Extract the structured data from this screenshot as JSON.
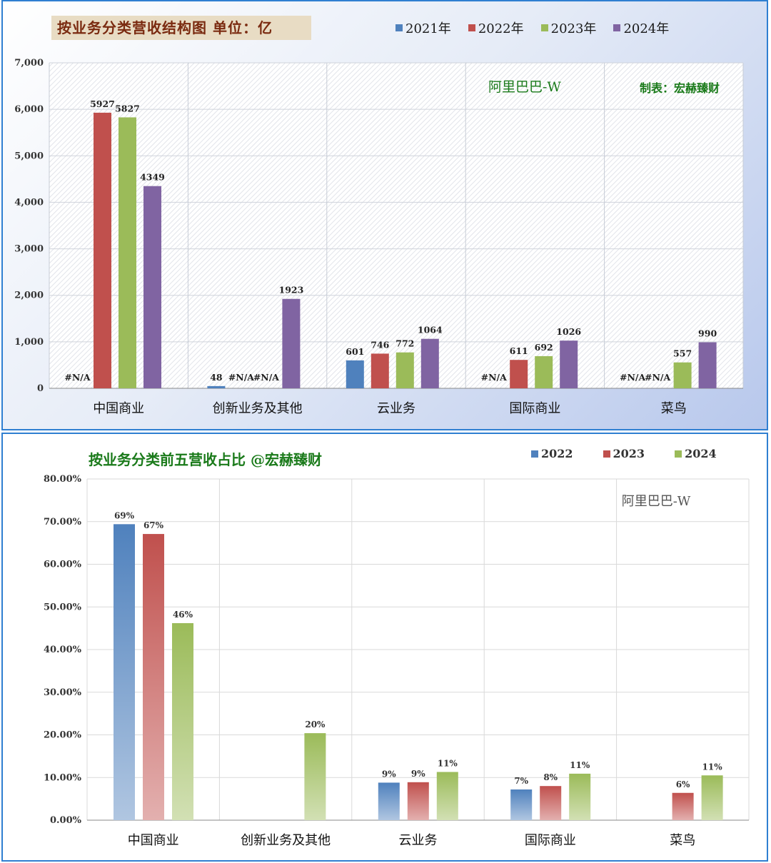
{
  "chart_data": [
    {
      "type": "bar",
      "title": "按业务分类营收结构图  单位：亿",
      "annotations": [
        "阿里巴巴-W",
        "制表：宏赫臻财"
      ],
      "categories": [
        "中国商业",
        "创新业务及其他",
        "云业务",
        "国际商业",
        "菜鸟"
      ],
      "series": [
        {
          "name": "2021年",
          "color": "#4f81bd",
          "values": [
            null,
            48,
            601,
            null,
            null
          ],
          "labels": [
            "#N/A",
            "48",
            "601",
            "#N/A",
            "#N/A"
          ]
        },
        {
          "name": "2022年",
          "color": "#c0504d",
          "values": [
            5927,
            null,
            746,
            611,
            null
          ],
          "labels": [
            "5927",
            "#N/A",
            "746",
            "611",
            "#N/A"
          ]
        },
        {
          "name": "2023年",
          "color": "#9bbb59",
          "values": [
            5827,
            null,
            772,
            692,
            557
          ],
          "labels": [
            "5827",
            "#N/A",
            "772",
            "692",
            "557"
          ]
        },
        {
          "name": "2024年",
          "color": "#8064a2",
          "values": [
            4349,
            1923,
            1064,
            1026,
            990
          ],
          "labels": [
            "4349",
            "1923",
            "1064",
            "1026",
            "990"
          ]
        }
      ],
      "ylim": [
        0,
        7000
      ],
      "yticks": [
        "0",
        "1,000",
        "2,000",
        "3,000",
        "4,000",
        "5,000",
        "6,000",
        "7,000"
      ],
      "grid": true,
      "legend": "top-right"
    },
    {
      "type": "bar",
      "title": "按业务分类前五营收占比   @宏赫臻财",
      "annotations": [
        "阿里巴巴-W"
      ],
      "categories": [
        "中国商业",
        "创新业务及其他",
        "云业务",
        "国际商业",
        "菜鸟"
      ],
      "series": [
        {
          "name": "2022",
          "color": "#4f81bd",
          "values": [
            69.4,
            null,
            8.8,
            7.2,
            null
          ],
          "labels": [
            "69%",
            "",
            "9%",
            "7%",
            ""
          ]
        },
        {
          "name": "2023",
          "color": "#c0504d",
          "values": [
            67.1,
            null,
            8.9,
            8.0,
            6.4
          ],
          "labels": [
            "67%",
            "",
            "9%",
            "8%",
            "6%"
          ]
        },
        {
          "name": "2024",
          "color": "#9bbb59",
          "values": [
            46.2,
            20.4,
            11.3,
            10.9,
            10.5
          ],
          "labels": [
            "46%",
            "20%",
            "11%",
            "11%",
            "11%"
          ]
        }
      ],
      "ylim": [
        0,
        80
      ],
      "yticks": [
        "0.00%",
        "10.00%",
        "20.00%",
        "30.00%",
        "40.00%",
        "50.00%",
        "60.00%",
        "70.00%",
        "80.00%"
      ],
      "grid": true,
      "legend": "top-right"
    }
  ]
}
